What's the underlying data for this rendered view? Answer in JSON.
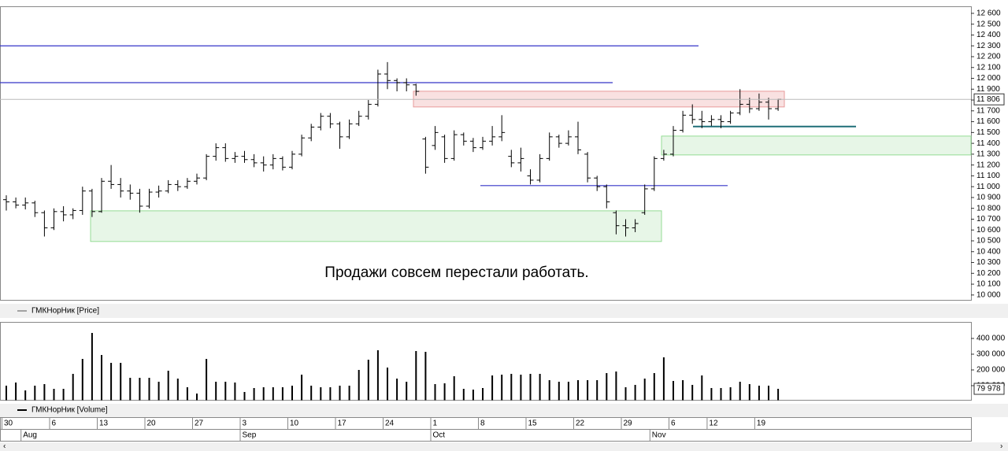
{
  "chart_data": [
    {
      "type": "ohlc",
      "legend": "ГМКНорНик [Price]",
      "annotation": "Продажи совсем перестали работать.",
      "color": "#000000",
      "open": [
        10880,
        10860,
        10830,
        10850,
        10760,
        10620,
        10770,
        10740,
        10780,
        10960,
        10770,
        11050,
        11020,
        10960,
        10940,
        10820,
        10950,
        10960,
        11020,
        11000,
        11050,
        11080,
        11280,
        11360,
        11260,
        11280,
        11250,
        11220,
        11200,
        11260,
        11180,
        11300,
        11450,
        11550,
        11650,
        11580,
        11460,
        11580,
        11650,
        11760,
        12040,
        11980,
        11960,
        11940,
        11440,
        11380,
        11460,
        11260,
        11480,
        11420,
        11360,
        11420,
        11460,
        11280,
        11220,
        11100,
        11060,
        11260,
        11460,
        11400,
        11460,
        11300,
        11080,
        11000,
        10760,
        10640,
        10620,
        10760,
        10980,
        11260,
        11300,
        11520,
        11660,
        11620,
        11600,
        11620,
        11600,
        11680,
        11760,
        11720,
        11780,
        11720
      ],
      "high": [
        10920,
        10900,
        10900,
        10870,
        10780,
        10800,
        10820,
        10800,
        11000,
        10980,
        11080,
        11200,
        11080,
        11020,
        10980,
        10980,
        11010,
        11060,
        11060,
        11080,
        11120,
        11300,
        11400,
        11400,
        11320,
        11330,
        11300,
        11280,
        11300,
        11280,
        11330,
        11480,
        11580,
        11680,
        11680,
        11600,
        11620,
        11700,
        11800,
        12080,
        12150,
        12000,
        12000,
        11950,
        11460,
        11560,
        11480,
        11520,
        11500,
        11450,
        11460,
        11560,
        11660,
        11340,
        11360,
        11160,
        11300,
        11500,
        11480,
        11520,
        11600,
        11320,
        11100,
        11020,
        10780,
        10700,
        10700,
        11020,
        11280,
        11340,
        11560,
        11700,
        11760,
        11700,
        11660,
        11660,
        11700,
        11900,
        11820,
        11860,
        11820,
        11810
      ],
      "low": [
        10780,
        10800,
        10790,
        10720,
        10540,
        10600,
        10680,
        10700,
        10740,
        10720,
        10760,
        10980,
        10900,
        10880,
        10760,
        10800,
        10900,
        10940,
        10960,
        10980,
        11020,
        11060,
        11240,
        11230,
        11220,
        11220,
        11180,
        11140,
        11160,
        11150,
        11160,
        11280,
        11420,
        11520,
        11540,
        11350,
        11440,
        11560,
        11620,
        11740,
        11900,
        11880,
        11880,
        11840,
        11120,
        11340,
        11220,
        11240,
        11380,
        11320,
        11340,
        11380,
        11420,
        11180,
        11140,
        11020,
        11040,
        11240,
        11360,
        11380,
        11300,
        11040,
        10960,
        10800,
        10560,
        10540,
        10580,
        10740,
        10960,
        11240,
        11280,
        11500,
        11580,
        11540,
        11560,
        11540,
        11580,
        11660,
        11680,
        11700,
        11620,
        11700
      ],
      "close": [
        10860,
        10830,
        10850,
        10760,
        10620,
        10770,
        10740,
        10780,
        10960,
        10770,
        11050,
        11020,
        10960,
        10940,
        10820,
        10950,
        10960,
        11020,
        11000,
        11050,
        11080,
        11280,
        11360,
        11260,
        11280,
        11250,
        11220,
        11200,
        11260,
        11180,
        11300,
        11450,
        11550,
        11650,
        11580,
        11460,
        11580,
        11650,
        11760,
        12040,
        11980,
        11960,
        11940,
        11880,
        11180,
        11500,
        11260,
        11480,
        11420,
        11360,
        11420,
        11460,
        11500,
        11220,
        11260,
        11060,
        11260,
        11460,
        11400,
        11460,
        11340,
        11080,
        11000,
        10860,
        10640,
        10620,
        10660,
        10980,
        11260,
        11300,
        11520,
        11660,
        11620,
        11600,
        11620,
        11600,
        11680,
        11760,
        11720,
        11780,
        11720,
        11806
      ],
      "close_labels": [
        null,
        null,
        null,
        null,
        null,
        null,
        null,
        null,
        null,
        null,
        null,
        null,
        null,
        null,
        null,
        null,
        null,
        null,
        null,
        null,
        null,
        null,
        null,
        null,
        null,
        null,
        null,
        null,
        null,
        null,
        null,
        null,
        null,
        null,
        null,
        null,
        null,
        null,
        null,
        null,
        null,
        null,
        null,
        null,
        null,
        null,
        null,
        null,
        null,
        null,
        null,
        null,
        null,
        null,
        null,
        null,
        null,
        null,
        null,
        null,
        null,
        null,
        null,
        null,
        null,
        null,
        null,
        null,
        null,
        null,
        null,
        null,
        null,
        null,
        null,
        null,
        null,
        null,
        null,
        null,
        null,
        "11 806"
      ],
      "levels": [
        {
          "value": 12300,
          "color": "#3434c8"
        },
        {
          "value": 11960,
          "color": "#3434c8"
        },
        {
          "value": 11010,
          "color": "#3434c8"
        },
        {
          "value": 11555,
          "color": "#1f6f78"
        }
      ],
      "zones": [
        {
          "from": 11736,
          "to": 11881,
          "color": "#f9e1e1",
          "edge": "#e79a9a"
        },
        {
          "from": 10494,
          "to": 10777,
          "color": "#e7f6e7",
          "edge": "#94dc94"
        },
        {
          "from": 11293,
          "to": 11467,
          "color": "#e7f6e7",
          "edge": "#94dc94"
        }
      ],
      "ylim": [
        9955,
        12665
      ],
      "yticks": [
        {
          "value": 10000,
          "label": "10 000"
        },
        {
          "value": 10100,
          "label": "10 100"
        },
        {
          "value": 10200,
          "label": "10 200"
        },
        {
          "value": 10300,
          "label": "10 300"
        },
        {
          "value": 10400,
          "label": "10 400"
        },
        {
          "value": 10500,
          "label": "10 500"
        },
        {
          "value": 10600,
          "label": "10 600"
        },
        {
          "value": 10700,
          "label": "10 700"
        },
        {
          "value": 10800,
          "label": "10 800"
        },
        {
          "value": 10900,
          "label": "10 900"
        },
        {
          "value": 11000,
          "label": "11 000"
        },
        {
          "value": 11100,
          "label": "11 100"
        },
        {
          "value": 11200,
          "label": "11 200"
        },
        {
          "value": 11300,
          "label": "11 300"
        },
        {
          "value": 11400,
          "label": "11 400"
        },
        {
          "value": 11500,
          "label": "11 500"
        },
        {
          "value": 11600,
          "label": "11 600"
        },
        {
          "value": 11700,
          "label": "11 700"
        },
        {
          "value": 11800,
          "label": "11 800"
        },
        {
          "value": 11900,
          "label": "11 900"
        },
        {
          "value": 12000,
          "label": "12 000"
        },
        {
          "value": 12100,
          "label": "12 100"
        },
        {
          "value": 12200,
          "label": "12 200"
        },
        {
          "value": 12300,
          "label": "12 300"
        },
        {
          "value": 12400,
          "label": "12 400"
        },
        {
          "value": 12500,
          "label": "12 500"
        },
        {
          "value": 12600,
          "label": "12 600"
        }
      ]
    },
    {
      "type": "bar",
      "legend": "ГМКНорНик [Volume]",
      "color": "#000000",
      "categories": [
        "30",
        null,
        null,
        null,
        null,
        "6",
        null,
        null,
        null,
        null,
        "13",
        null,
        null,
        null,
        null,
        "20",
        null,
        null,
        null,
        null,
        "27",
        null,
        null,
        null,
        null,
        "3",
        null,
        null,
        null,
        null,
        "10",
        null,
        null,
        null,
        null,
        "17",
        null,
        null,
        null,
        null,
        "24",
        null,
        null,
        null,
        null,
        "1",
        null,
        null,
        null,
        null,
        "8",
        null,
        null,
        null,
        null,
        "15",
        null,
        null,
        null,
        null,
        "22",
        null,
        null,
        null,
        null,
        "29",
        null,
        null,
        null,
        null,
        "6",
        null,
        null,
        null,
        "12",
        null,
        null,
        null,
        null,
        "19",
        null,
        null
      ],
      "month_labels": [
        null,
        null,
        "Aug",
        null,
        null,
        null,
        null,
        null,
        null,
        null,
        null,
        null,
        null,
        null,
        null,
        null,
        null,
        null,
        null,
        null,
        null,
        null,
        null,
        null,
        null,
        "Sep",
        null,
        null,
        null,
        null,
        null,
        null,
        null,
        null,
        null,
        null,
        null,
        null,
        null,
        null,
        null,
        null,
        null,
        null,
        null,
        "Oct",
        null,
        null,
        null,
        null,
        null,
        null,
        null,
        null,
        null,
        null,
        null,
        null,
        null,
        null,
        null,
        null,
        null,
        null,
        null,
        null,
        null,
        null,
        "Nov",
        null,
        null,
        null,
        null,
        null,
        null,
        null,
        null,
        null,
        null,
        null,
        null,
        null
      ],
      "values": [
        100000,
        120000,
        70000,
        100000,
        110000,
        80000,
        80000,
        175000,
        270000,
        435000,
        295000,
        245000,
        245000,
        150000,
        150000,
        150000,
        125000,
        195000,
        145000,
        90000,
        50000,
        270000,
        125000,
        125000,
        120000,
        60000,
        85000,
        90000,
        90000,
        90000,
        100000,
        170000,
        100000,
        90000,
        90000,
        100000,
        100000,
        200000,
        265000,
        325000,
        215000,
        145000,
        125000,
        320000,
        315000,
        110000,
        115000,
        160000,
        80000,
        75000,
        85000,
        165000,
        170000,
        175000,
        170000,
        175000,
        175000,
        135000,
        125000,
        125000,
        135000,
        135000,
        135000,
        180000,
        190000,
        90000,
        105000,
        145000,
        180000,
        280000,
        130000,
        135000,
        105000,
        165000,
        85000,
        85000,
        90000,
        125000,
        110000,
        100000,
        100000,
        79978
      ],
      "value_labels": [
        null,
        null,
        null,
        null,
        null,
        null,
        null,
        null,
        null,
        null,
        null,
        null,
        null,
        null,
        null,
        null,
        null,
        null,
        null,
        null,
        null,
        null,
        null,
        null,
        null,
        null,
        null,
        null,
        null,
        null,
        null,
        null,
        null,
        null,
        null,
        null,
        null,
        null,
        null,
        null,
        null,
        null,
        null,
        null,
        null,
        null,
        null,
        null,
        null,
        null,
        null,
        null,
        null,
        null,
        null,
        null,
        null,
        null,
        null,
        null,
        null,
        null,
        null,
        null,
        null,
        null,
        null,
        null,
        null,
        null,
        null,
        null,
        null,
        null,
        null,
        null,
        null,
        null,
        null,
        null,
        null,
        "79 978"
      ],
      "ylim": [
        0,
        500000
      ],
      "yticks": [
        {
          "value": 100000,
          "label": "100 000"
        },
        {
          "value": 200000,
          "label": "200 000"
        },
        {
          "value": 300000,
          "label": "300 000"
        },
        {
          "value": 400000,
          "label": "400 000"
        }
      ]
    }
  ]
}
